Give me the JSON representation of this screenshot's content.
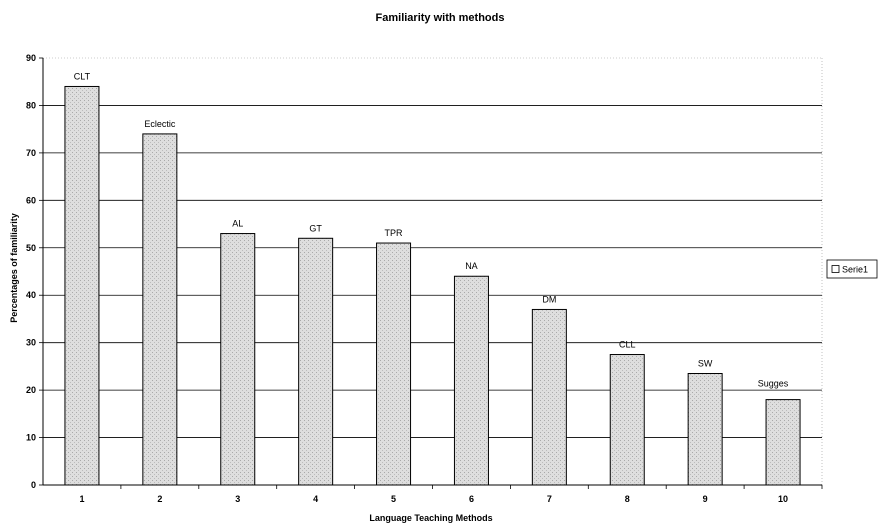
{
  "chart_data": {
    "type": "bar",
    "title": "Familiarity with methods",
    "xlabel": "Language Teaching Methods",
    "ylabel": "Percentages of familiarity",
    "ylim": [
      0,
      90
    ],
    "yticks": [
      0,
      10,
      20,
      30,
      40,
      50,
      60,
      70,
      80,
      90
    ],
    "grid": true,
    "legend_position": "right",
    "categories": [
      "1",
      "2",
      "3",
      "4",
      "5",
      "6",
      "7",
      "8",
      "9",
      "10"
    ],
    "series": [
      {
        "name": "Serie1",
        "values": [
          84,
          74,
          53,
          52,
          51,
          44,
          37,
          27.5,
          23.5,
          18
        ],
        "labels": [
          "CLT",
          "Eclectic",
          "AL",
          "GT",
          "TPR",
          "NA",
          "DM",
          "CLL",
          "SW",
          "Sugges"
        ]
      }
    ],
    "colors": {
      "bar_fill": "#d4d4d4",
      "bar_stroke": "#000000",
      "grid": "#000000",
      "axis": "#000000"
    }
  }
}
